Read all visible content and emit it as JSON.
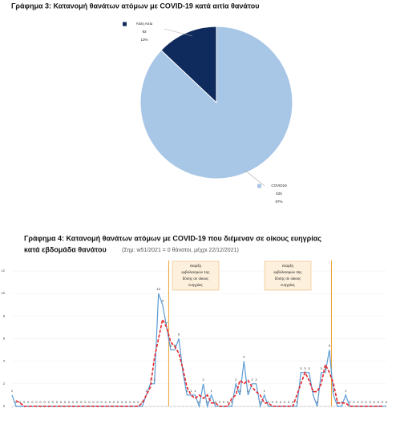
{
  "charts": [
    {
      "chart_data": {
        "type": "pie",
        "title": "Γράφημα 3: Κατανομή θανάτων ατόμων με COVID-19 κατά αιτία θανάτου",
        "categories": [
          "Άλλη Αιτία",
          "COVID19"
        ],
        "values": [
          93,
          625
        ],
        "colors": [
          "#0f2a5c",
          "#a8c6e6"
        ],
        "shares": {
          "values": [
            13,
            87
          ],
          "value_labels": [
            "13%",
            "87%"
          ]
        }
      }
    },
    {
      "chart_data": {
        "type": "line",
        "title": "Γράφημα 4: Κατανομή θανάτων ατόμων με COVID-19 που διέμεναν σε οίκους ευηγρίας",
        "title_line2": "κατά εβδομάδα θανάτου",
        "subtitle": "(Σημ: w51/2021 = 0 θάνατοι, μέχρι 22/12/2021)",
        "annotations": [
          [
            "έναρξη",
            "εμβολιασμών 1ης",
            "δόσης σε οίκους",
            "ευηγρίας"
          ],
          [
            "έναρξη",
            "εμβολιασμών 3ης",
            "δόσης σε οίκους",
            "ευηγρίας"
          ]
        ],
        "categories": [
          null,
          null,
          null,
          null,
          null,
          null,
          null,
          null,
          null,
          null,
          null,
          null,
          null,
          null,
          null,
          null,
          null,
          null,
          null,
          null,
          null,
          null,
          null,
          null,
          null,
          null,
          null,
          null,
          null,
          null,
          null,
          null,
          null,
          null,
          null,
          null,
          null,
          null,
          null,
          null,
          null,
          null,
          null,
          null,
          null,
          null,
          null,
          null,
          null,
          null,
          null,
          null,
          null,
          null,
          null,
          null,
          null,
          null,
          null,
          null,
          null,
          null,
          null,
          null,
          null,
          null,
          null,
          null,
          null,
          null,
          null,
          null,
          null,
          null,
          null,
          null,
          null,
          null,
          null,
          null,
          null,
          null,
          null,
          null,
          null,
          null,
          null,
          null,
          null,
          null,
          null,
          null,
          null
        ],
        "series": [
          {
            "color": "#5b9bd5",
            "values": [
              1,
              0,
              0,
              0,
              0,
              0,
              0,
              0,
              0,
              0,
              0,
              0,
              0,
              0,
              0,
              0,
              0,
              0,
              0,
              0,
              0,
              0,
              0,
              0,
              0,
              0,
              0,
              0,
              0,
              0,
              0,
              0,
              0,
              1,
              2,
              2,
              10,
              9,
              7,
              5,
              5,
              6,
              3,
              1,
              1,
              1,
              0,
              2,
              0,
              1,
              0,
              0,
              0,
              0,
              0,
              2,
              1,
              4,
              1,
              2,
              2,
              0,
              1,
              0,
              0,
              0,
              0,
              0,
              0,
              0,
              0,
              3,
              3,
              3,
              1,
              0,
              3,
              3,
              5,
              1,
              0,
              0,
              1,
              0,
              0,
              0,
              0,
              0,
              0,
              0,
              0,
              0,
              0
            ]
          },
          {
            "color": "#e8262a",
            "dashed": true,
            "values": [
              null,
              0.5,
              0.3,
              0,
              0,
              0,
              0,
              0,
              0,
              0,
              0,
              0,
              0,
              0,
              0,
              0,
              0,
              0,
              0,
              0,
              0,
              0,
              0,
              0,
              0,
              0,
              0,
              0,
              0,
              0,
              0,
              0,
              0.3,
              1,
              1.7,
              4.3,
              6,
              7.7,
              7,
              5.7,
              5.3,
              4.7,
              3.3,
              1.7,
              1,
              0.7,
              1,
              0.7,
              1,
              0.3,
              0.3,
              0,
              0,
              0,
              0.7,
              1,
              2.3,
              2,
              2.3,
              1.7,
              1.3,
              1,
              0.3,
              0.3,
              0,
              0,
              0,
              0,
              0,
              0,
              1,
              2,
              3,
              2.3,
              1.3,
              1.3,
              2,
              3.7,
              3,
              2,
              0.3,
              0.3,
              0.3,
              0,
              0,
              0,
              0,
              0,
              0,
              0,
              0,
              0,
              null
            ]
          }
        ],
        "ylim": [
          0,
          12
        ],
        "yticks": [
          0,
          2,
          4,
          6,
          8,
          10,
          12
        ],
        "grid": true
      }
    }
  ]
}
